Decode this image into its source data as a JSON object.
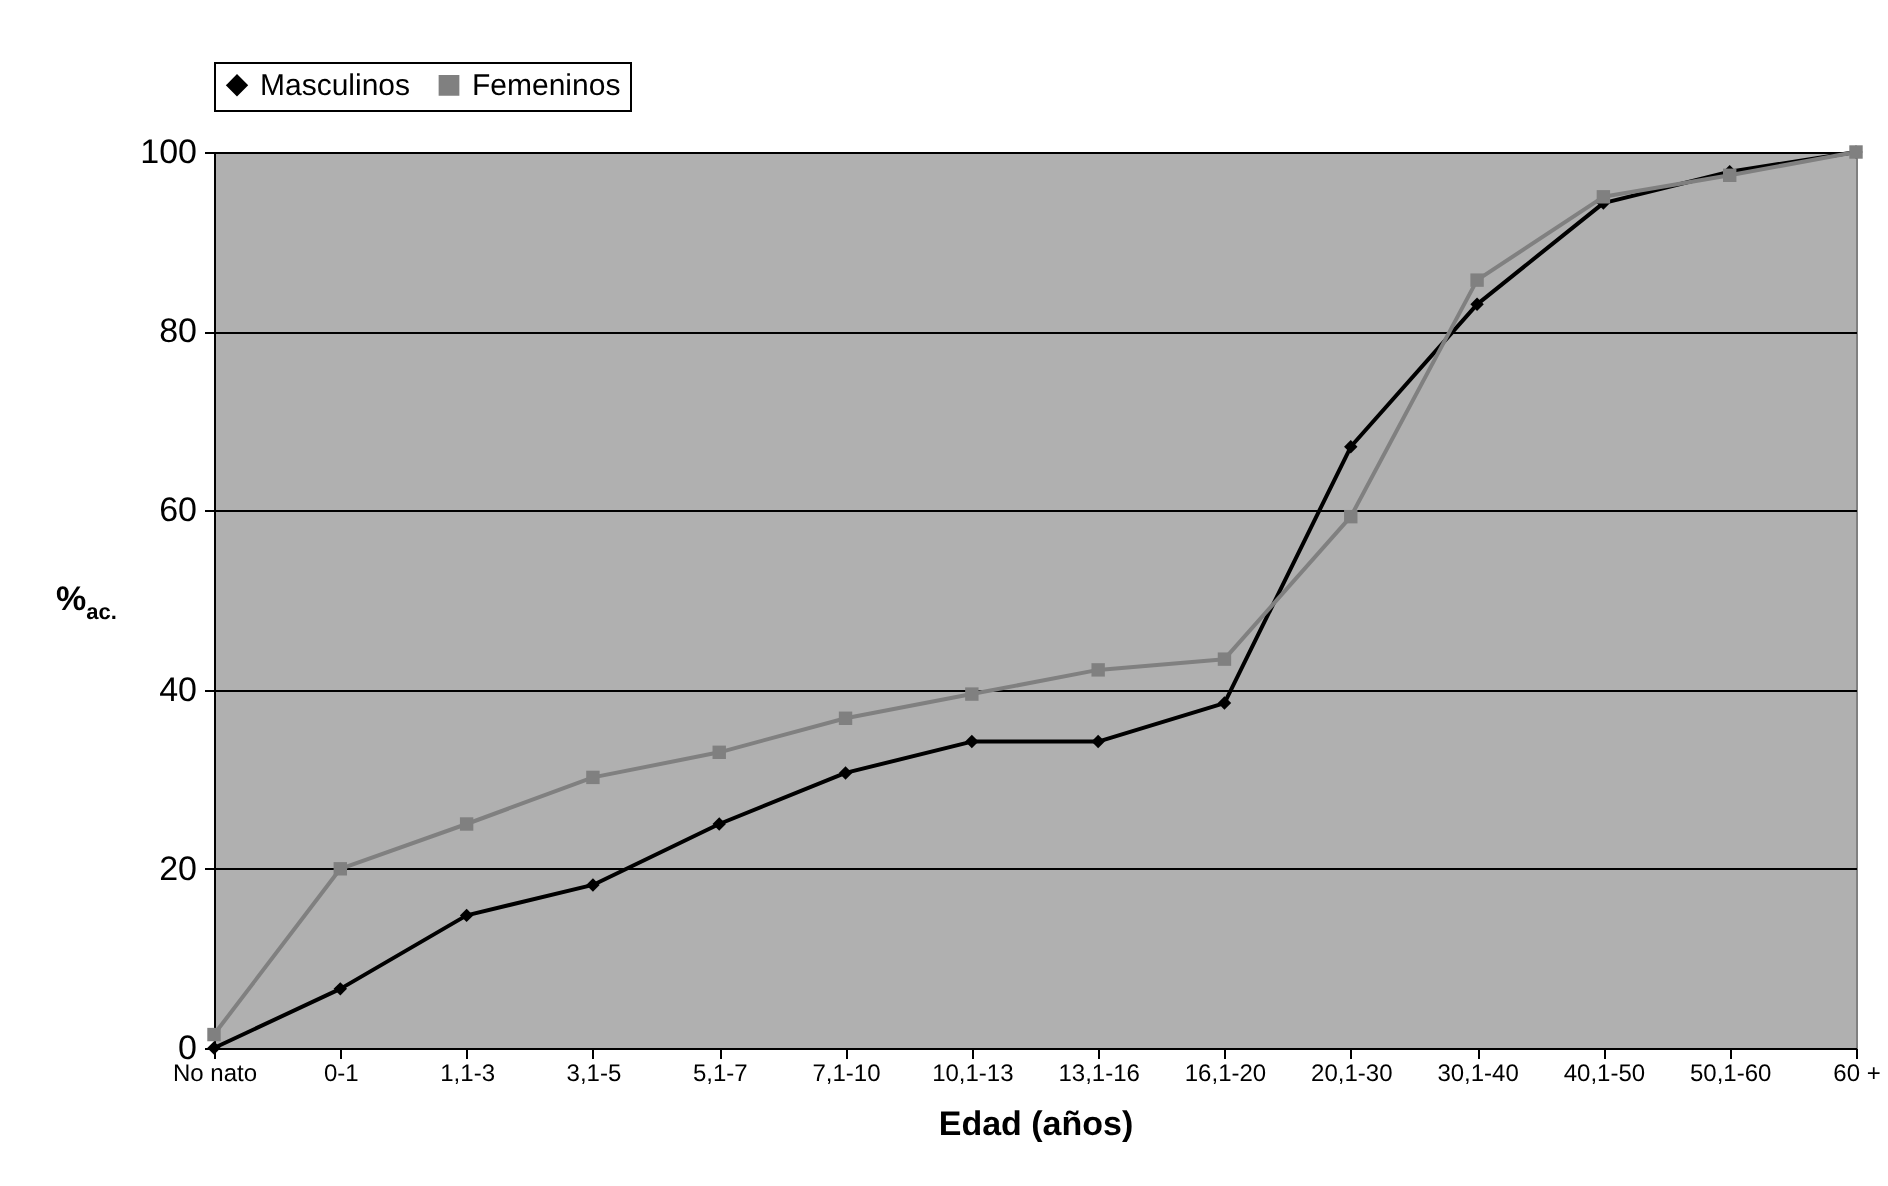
{
  "chart_data": {
    "type": "line",
    "xlabel": "Edad (años)",
    "ylabel": "%$_{ac.}$",
    "categories": [
      "No nato",
      "0-1",
      "1,1-3",
      "3,1-5",
      "5,1-7",
      "7,1-10",
      "10,1-13",
      "13,1-16",
      "16,1-20",
      "20,1-30",
      "30,1-40",
      "40,1-50",
      "50,1-60",
      "60 +"
    ],
    "series": [
      {
        "name": "Masculinos",
        "color": "#000000",
        "marker": "diamond",
        "values": [
          0,
          6.6,
          14.8,
          18.2,
          25,
          30.7,
          34.2,
          34.2,
          38.5,
          67.1,
          83,
          94.3,
          97.8,
          100
        ]
      },
      {
        "name": "Femeninos",
        "color": "#808080",
        "marker": "square",
        "values": [
          1.5,
          20,
          25,
          30.2,
          33,
          36.8,
          39.5,
          42.2,
          43.4,
          59.3,
          85.7,
          95,
          97.4,
          100
        ]
      }
    ],
    "ylim": [
      0,
      100
    ],
    "yticks": [
      0,
      20,
      40,
      60,
      80,
      100
    ],
    "grid": "y",
    "legend": "top",
    "line_style": "solid"
  }
}
